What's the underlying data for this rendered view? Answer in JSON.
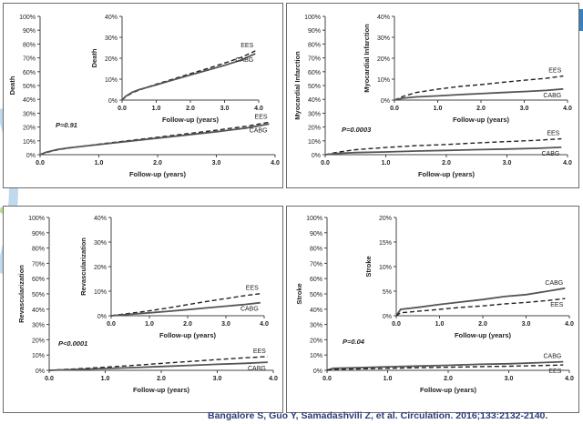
{
  "citation": "Bangalore S, Guo Y, Samadashvili Z,  et al. Circulation. 2016;133:2132-2140.",
  "colors": {
    "cabg": "#555555",
    "ees": "#222222",
    "axis": "#444444",
    "accent": "#2b3d7a"
  },
  "chart_data": [
    {
      "type": "line",
      "panel": "death",
      "ylabel": "Death",
      "xlabel": "Follow-up (years)",
      "xlim": [
        0,
        4
      ],
      "ylim": [
        0,
        100
      ],
      "yticks": [
        "0%",
        "10%",
        "20%",
        "30%",
        "40%",
        "50%",
        "60%",
        "70%",
        "80%",
        "90%",
        "100%"
      ],
      "xticks": [
        "0.0",
        "1.0",
        "2.0",
        "3.0",
        "4.0"
      ],
      "pvalue": "P=0.91",
      "series": [
        {
          "name": "EES",
          "x": [
            0,
            0.1,
            0.3,
            0.5,
            1.0,
            1.5,
            2.0,
            2.5,
            3.0,
            3.5,
            3.9
          ],
          "y": [
            0,
            1.5,
            3.5,
            4.8,
            7.6,
            10.1,
            12.6,
            15.1,
            17.7,
            20.5,
            23.5
          ]
        },
        {
          "name": "CABG",
          "x": [
            0,
            0.1,
            0.3,
            0.5,
            1.0,
            1.5,
            2.0,
            2.5,
            3.0,
            3.5,
            3.9
          ],
          "y": [
            0,
            1.8,
            3.8,
            5.0,
            7.3,
            9.7,
            12.0,
            14.3,
            16.6,
            19.2,
            22.2
          ]
        }
      ],
      "inset": {
        "ylabel": "Death",
        "xlabel": "Follow-up (years)",
        "xlim": [
          0,
          4
        ],
        "ylim": [
          0,
          40
        ],
        "yticks": [
          "0%",
          "10%",
          "20%",
          "30%",
          "40%"
        ],
        "xticks": [
          "0.0",
          "1.0",
          "2.0",
          "3.0",
          "4.0"
        ],
        "series": [
          {
            "name": "EES",
            "x": [
              0,
              0.1,
              0.3,
              0.5,
              1.0,
              1.5,
              2.0,
              2.5,
              3.0,
              3.5,
              3.9
            ],
            "y": [
              0,
              1.5,
              3.5,
              4.8,
              7.6,
              10.1,
              12.6,
              15.1,
              17.7,
              20.5,
              23.5
            ]
          },
          {
            "name": "CABG",
            "x": [
              0,
              0.1,
              0.3,
              0.5,
              1.0,
              1.5,
              2.0,
              2.5,
              3.0,
              3.5,
              3.9
            ],
            "y": [
              0,
              1.8,
              3.8,
              5.0,
              7.3,
              9.7,
              12.0,
              14.3,
              16.6,
              19.2,
              22.2
            ]
          }
        ]
      }
    },
    {
      "type": "line",
      "panel": "mi",
      "ylabel": "Myocardial Infarction",
      "xlabel": "Follow-up (years)",
      "xlim": [
        0,
        4
      ],
      "ylim": [
        0,
        100
      ],
      "yticks": [
        "0%",
        "10%",
        "20%",
        "30%",
        "40%",
        "50%",
        "60%",
        "70%",
        "80%",
        "90%",
        "100%"
      ],
      "xticks": [
        "0.0",
        "1.0",
        "2.0",
        "3.0",
        "4.0"
      ],
      "pvalue": "P=0.0003",
      "series": [
        {
          "name": "EES",
          "x": [
            0,
            0.2,
            0.5,
            1.0,
            1.5,
            2.0,
            2.5,
            3.0,
            3.5,
            3.9
          ],
          "y": [
            0,
            1.8,
            3.6,
            5.2,
            6.5,
            7.4,
            8.5,
            9.5,
            10.4,
            11.5
          ]
        },
        {
          "name": "CABG",
          "x": [
            0,
            0.2,
            0.5,
            1.0,
            1.5,
            2.0,
            2.5,
            3.0,
            3.5,
            3.9
          ],
          "y": [
            0,
            0.9,
            1.5,
            2.0,
            2.6,
            3.1,
            3.6,
            4.1,
            4.6,
            5.3
          ]
        }
      ],
      "inset": {
        "ylabel": "Myocardial Infarction",
        "xlabel": "Follow-up (years)",
        "xlim": [
          0,
          4
        ],
        "ylim": [
          0,
          40
        ],
        "yticks": [
          "0%",
          "10%",
          "20%",
          "30%",
          "40%"
        ],
        "xticks": [
          "0.0",
          "1.0",
          "2.0",
          "3.0",
          "4.0"
        ],
        "series": [
          {
            "name": "EES",
            "x": [
              0,
              0.2,
              0.5,
              1.0,
              1.5,
              2.0,
              2.5,
              3.0,
              3.5,
              3.9
            ],
            "y": [
              0,
              1.8,
              3.6,
              5.2,
              6.5,
              7.4,
              8.5,
              9.5,
              10.4,
              11.5
            ]
          },
          {
            "name": "CABG",
            "x": [
              0,
              0.2,
              0.5,
              1.0,
              1.5,
              2.0,
              2.5,
              3.0,
              3.5,
              3.9
            ],
            "y": [
              0,
              0.9,
              1.5,
              2.0,
              2.6,
              3.1,
              3.6,
              4.1,
              4.6,
              5.3
            ]
          }
        ]
      }
    },
    {
      "type": "line",
      "panel": "revascularization",
      "ylabel": "Revascularization",
      "xlabel": "Follow-up (years)",
      "xlim": [
        0,
        4
      ],
      "ylim": [
        0,
        100
      ],
      "yticks": [
        "0%",
        "10%",
        "20%",
        "30%",
        "40%",
        "50%",
        "60%",
        "70%",
        "80%",
        "90%",
        "100%"
      ],
      "xticks": [
        "0.0",
        "1.0",
        "2.0",
        "3.0",
        "4.0"
      ],
      "pvalue": "P<0.0001",
      "series": [
        {
          "name": "EES",
          "x": [
            0,
            0.5,
            1.0,
            1.5,
            2.0,
            2.5,
            3.0,
            3.5,
            3.9
          ],
          "y": [
            0,
            1.0,
            2.0,
            3.2,
            4.5,
            5.8,
            7.0,
            8.2,
            9.0
          ]
        },
        {
          "name": "CABG",
          "x": [
            0,
            0.5,
            1.0,
            1.5,
            2.0,
            2.5,
            3.0,
            3.5,
            3.9
          ],
          "y": [
            0,
            0.6,
            1.2,
            1.8,
            2.5,
            3.2,
            3.9,
            4.6,
            5.3
          ]
        }
      ],
      "inset": {
        "ylabel": "Revascularization",
        "xlabel": "Follow-up (years)",
        "xlim": [
          0,
          4
        ],
        "ylim": [
          0,
          40
        ],
        "yticks": [
          "0%",
          "10%",
          "20%",
          "30%",
          "40%"
        ],
        "xticks": [
          "0.0",
          "1.0",
          "2.0",
          "3.0",
          "4.0"
        ],
        "series": [
          {
            "name": "EES",
            "x": [
              0,
              0.5,
              1.0,
              1.5,
              2.0,
              2.5,
              3.0,
              3.5,
              3.9
            ],
            "y": [
              0,
              1.0,
              2.0,
              3.2,
              4.5,
              5.8,
              7.0,
              8.2,
              9.0
            ]
          },
          {
            "name": "CABG",
            "x": [
              0,
              0.5,
              1.0,
              1.5,
              2.0,
              2.5,
              3.0,
              3.5,
              3.9
            ],
            "y": [
              0,
              0.6,
              1.2,
              1.8,
              2.5,
              3.2,
              3.9,
              4.6,
              5.3
            ]
          }
        ]
      }
    },
    {
      "type": "line",
      "panel": "stroke",
      "ylabel": "Stroke",
      "xlabel": "Follow-up (years)",
      "xlim": [
        0,
        4
      ],
      "ylim": [
        0,
        100
      ],
      "yticks": [
        "0%",
        "10%",
        "20%",
        "30%",
        "40%",
        "50%",
        "60%",
        "70%",
        "80%",
        "90%",
        "100%"
      ],
      "xticks": [
        "0.0",
        "1.0",
        "2.0",
        "3.0",
        "4.0"
      ],
      "pvalue": "P=0.04",
      "series": [
        {
          "name": "CABG",
          "x": [
            0,
            0.1,
            0.5,
            1.0,
            1.5,
            2.0,
            2.5,
            3.0,
            3.5,
            3.9
          ],
          "y": [
            0,
            1.3,
            1.7,
            2.3,
            2.8,
            3.3,
            3.9,
            4.3,
            5.0,
            5.6
          ]
        },
        {
          "name": "EES",
          "x": [
            0,
            0.1,
            0.5,
            1.0,
            1.5,
            2.0,
            2.5,
            3.0,
            3.5,
            3.9
          ],
          "y": [
            0,
            0.6,
            0.9,
            1.3,
            1.7,
            2.0,
            2.4,
            2.7,
            3.1,
            3.5
          ]
        }
      ],
      "inset": {
        "ylabel": "Stroke",
        "xlabel": "Follow-up (years)",
        "xlim": [
          0,
          4
        ],
        "ylim": [
          0,
          20
        ],
        "yticks": [
          "0%",
          "5%",
          "10%",
          "15%",
          "20%"
        ],
        "xticks": [
          "0.0",
          "1.0",
          "2.0",
          "3.0",
          "4.0"
        ],
        "series": [
          {
            "name": "CABG",
            "x": [
              0,
              0.1,
              0.5,
              1.0,
              1.5,
              2.0,
              2.5,
              3.0,
              3.5,
              3.9
            ],
            "y": [
              0,
              1.3,
              1.7,
              2.3,
              2.8,
              3.3,
              3.9,
              4.3,
              5.0,
              5.6
            ]
          },
          {
            "name": "EES",
            "x": [
              0,
              0.1,
              0.5,
              1.0,
              1.5,
              2.0,
              2.5,
              3.0,
              3.5,
              3.9
            ],
            "y": [
              0,
              0.6,
              0.9,
              1.3,
              1.7,
              2.0,
              2.4,
              2.7,
              3.1,
              3.5
            ]
          }
        ]
      }
    }
  ]
}
